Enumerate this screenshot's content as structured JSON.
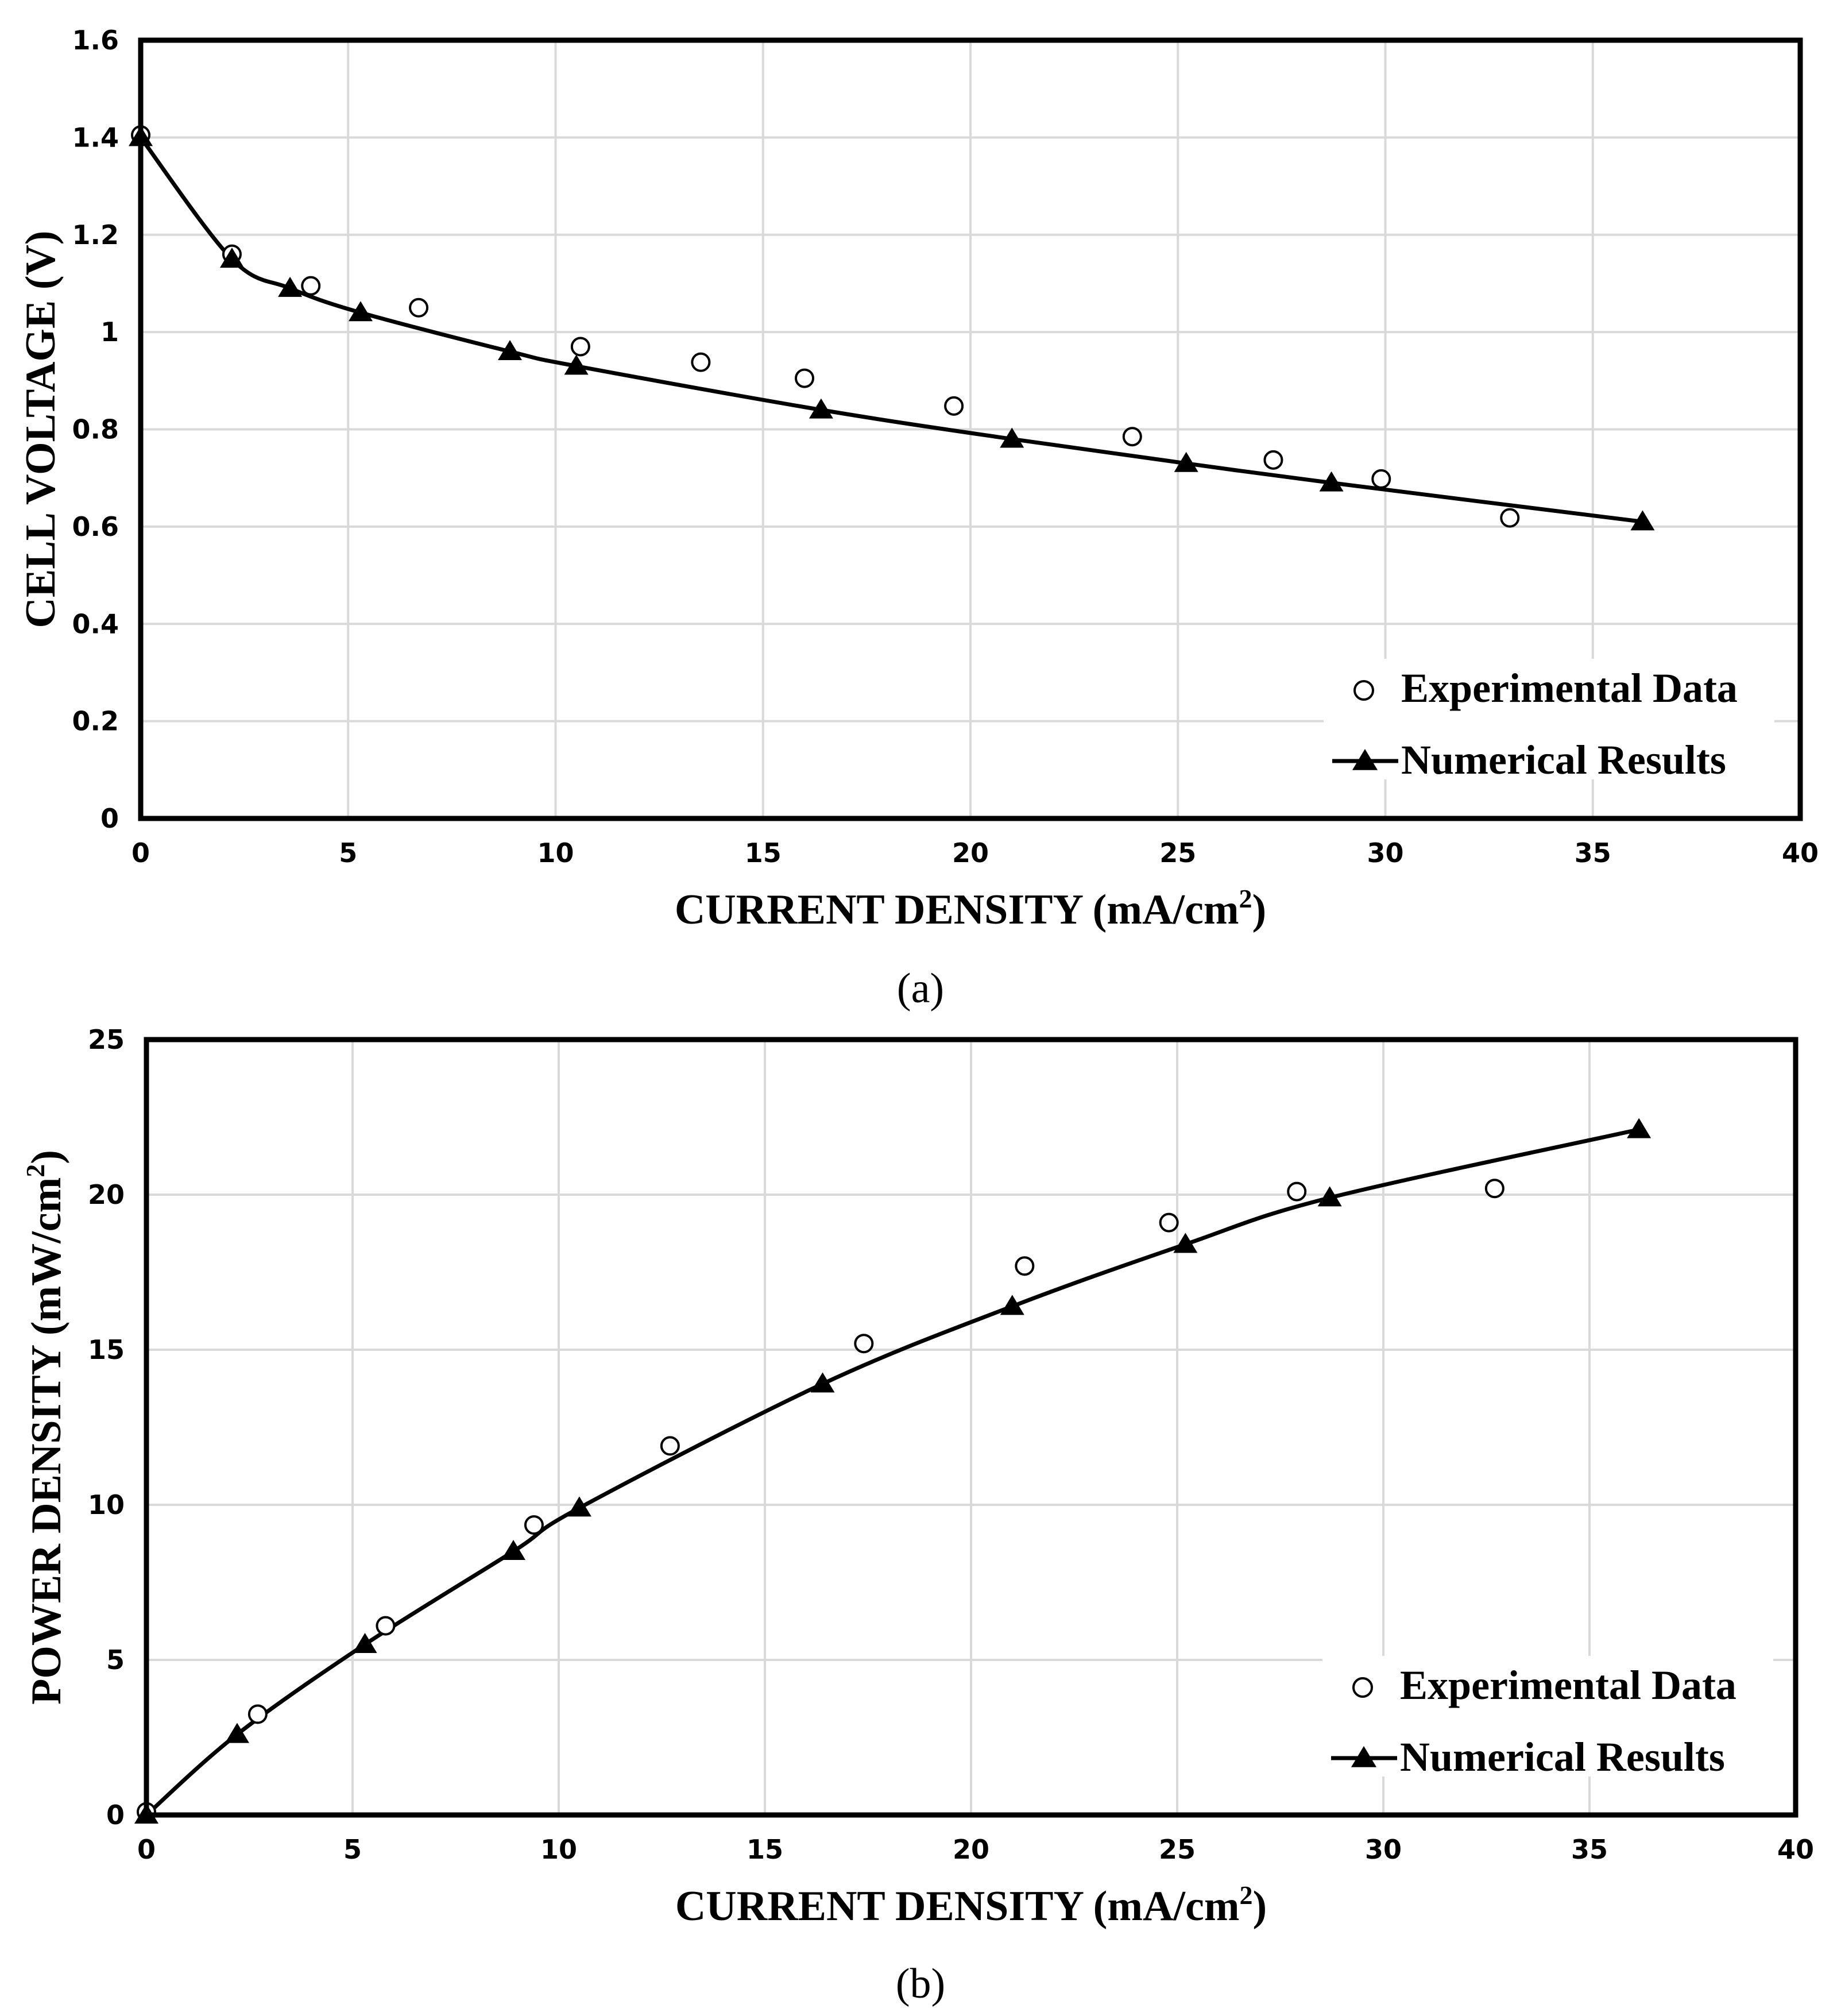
{
  "chart_data": [
    {
      "type": "line",
      "panel_label": "(a)",
      "xlabel": "CURRENT DENSITY (mA/cm",
      "xlabel_sup": "2",
      "xlabel_close": ")",
      "ylabel": "CELL VOLTAGE (V)",
      "xlim": [
        0,
        40
      ],
      "ylim": [
        0,
        1.6
      ],
      "xticks": [
        "0",
        "5",
        "10",
        "15",
        "20",
        "25",
        "30",
        "35",
        "40"
      ],
      "yticks": [
        "0",
        "0.2",
        "0.4",
        "0.6",
        "0.8",
        "1",
        "1.2",
        "1.4",
        "1.6"
      ],
      "grid": true,
      "legend_position": "bottom-right",
      "series": [
        {
          "name": "Experimental Data",
          "marker": "open-circle",
          "x": [
            0,
            2.2,
            4.1,
            6.7,
            10.6,
            13.5,
            16.0,
            19.6,
            23.9,
            27.3,
            29.9,
            33.0
          ],
          "y": [
            1.405,
            1.16,
            1.095,
            1.05,
            0.97,
            0.938,
            0.905,
            0.848,
            0.785,
            0.737,
            0.698,
            0.618
          ]
        },
        {
          "name": "Numerical Results",
          "marker": "filled-triangle",
          "line": true,
          "x": [
            0,
            2.2,
            3.6,
            5.3,
            8.9,
            10.5,
            16.4,
            21.0,
            25.2,
            28.7,
            36.2
          ],
          "y": [
            1.4,
            1.15,
            1.09,
            1.04,
            0.96,
            0.93,
            0.84,
            0.78,
            0.73,
            0.69,
            0.61
          ]
        }
      ]
    },
    {
      "type": "line",
      "panel_label": "(b)",
      "xlabel": "CURRENT DENSITY (mA/cm",
      "xlabel_sup": "2",
      "xlabel_close": ")",
      "ylabel": "POWER DENSITY (mW/cm",
      "ylabel_sup": "2",
      "ylabel_close": ")",
      "xlim": [
        0,
        40
      ],
      "ylim": [
        0,
        25
      ],
      "xticks": [
        "0",
        "5",
        "10",
        "15",
        "20",
        "25",
        "30",
        "35",
        "40"
      ],
      "yticks": [
        "0",
        "5",
        "10",
        "15",
        "20",
        "25"
      ],
      "grid": true,
      "legend_position": "bottom-right",
      "series": [
        {
          "name": "Experimental Data",
          "marker": "open-circle",
          "x": [
            0,
            2.7,
            5.8,
            9.4,
            12.7,
            17.4,
            21.3,
            24.8,
            27.9,
            32.7
          ],
          "y": [
            0.1,
            3.25,
            6.1,
            9.35,
            11.9,
            15.2,
            17.7,
            19.1,
            20.1,
            20.2
          ]
        },
        {
          "name": "Numerical Results",
          "marker": "filled-triangle",
          "line": true,
          "x": [
            0,
            2.2,
            5.3,
            8.9,
            10.5,
            16.4,
            21.0,
            25.2,
            28.7,
            36.2
          ],
          "y": [
            0,
            2.6,
            5.5,
            8.5,
            9.9,
            13.9,
            16.4,
            18.4,
            19.9,
            22.1
          ]
        }
      ]
    }
  ]
}
